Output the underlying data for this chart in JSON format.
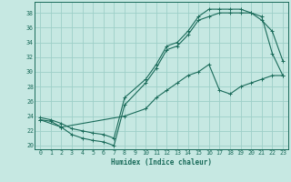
{
  "xlabel": "Humidex (Indice chaleur)",
  "xlim": [
    -0.5,
    23.5
  ],
  "ylim": [
    19.5,
    39.5
  ],
  "xticks": [
    0,
    1,
    2,
    3,
    4,
    5,
    6,
    7,
    8,
    9,
    10,
    11,
    12,
    13,
    14,
    15,
    16,
    17,
    18,
    19,
    20,
    21,
    22,
    23
  ],
  "yticks": [
    20,
    22,
    24,
    26,
    28,
    30,
    32,
    34,
    36,
    38
  ],
  "background_color": "#c6e8e2",
  "grid_color": "#9ecfc8",
  "line_color": "#1a6b5a",
  "line1_x": [
    0,
    1,
    2,
    3,
    4,
    5,
    6,
    7,
    8,
    10,
    11,
    12,
    13,
    14,
    15,
    16,
    17,
    18,
    19,
    20,
    21,
    22,
    23
  ],
  "line1_y": [
    23.5,
    23.3,
    22.5,
    21.5,
    21.0,
    20.7,
    20.5,
    20.0,
    25.5,
    28.5,
    30.5,
    33.0,
    33.5,
    35.0,
    37.0,
    37.5,
    38.0,
    38.0,
    38.0,
    38.0,
    37.0,
    35.5,
    31.5
  ],
  "line2_x": [
    0,
    1,
    2,
    3,
    4,
    5,
    6,
    7,
    8,
    10,
    11,
    12,
    13,
    14,
    15,
    16,
    17,
    18,
    19,
    20,
    21,
    22,
    23
  ],
  "line2_y": [
    23.8,
    23.5,
    23.0,
    22.3,
    22.0,
    21.7,
    21.5,
    21.0,
    26.5,
    29.0,
    31.0,
    33.5,
    34.0,
    35.5,
    37.5,
    38.5,
    38.5,
    38.5,
    38.5,
    38.0,
    37.5,
    32.5,
    29.5
  ],
  "line3_x": [
    0,
    2,
    8,
    10,
    11,
    12,
    13,
    14,
    15,
    16,
    17,
    18,
    19,
    20,
    21,
    22,
    23
  ],
  "line3_y": [
    23.5,
    22.5,
    24.0,
    25.0,
    26.5,
    27.5,
    28.5,
    29.5,
    30.0,
    31.0,
    27.5,
    27.0,
    28.0,
    28.5,
    29.0,
    29.5,
    29.5
  ]
}
